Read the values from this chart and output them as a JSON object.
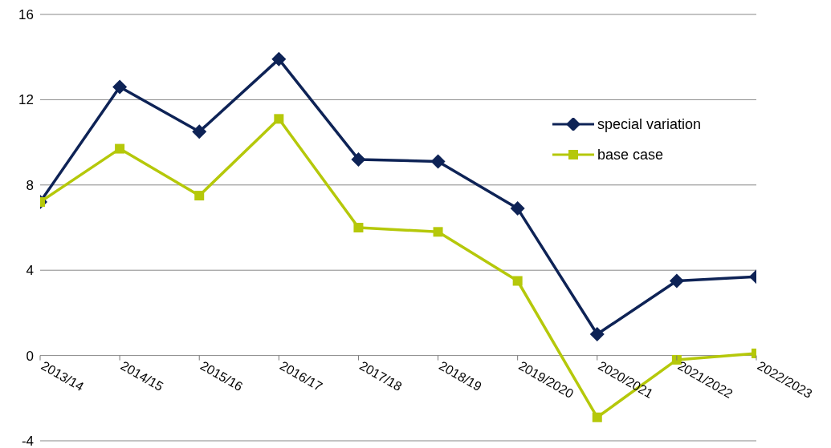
{
  "chart_data": {
    "type": "line",
    "categories": [
      "2013/14",
      "2014/15",
      "2015/16",
      "2016/17",
      "2017/18",
      "2018/19",
      "2019/2020",
      "2020/2021",
      "2021/2022",
      "2022/2023"
    ],
    "series": [
      {
        "name": "special variation",
        "color": "#0e2356",
        "marker": "diamond",
        "values": [
          7.2,
          12.6,
          10.5,
          13.9,
          9.2,
          9.1,
          6.9,
          1.0,
          3.5,
          3.7
        ]
      },
      {
        "name": "base case",
        "color": "#b5c80a",
        "marker": "square",
        "values": [
          7.2,
          9.7,
          7.5,
          11.1,
          6.0,
          5.8,
          3.5,
          -2.9,
          -0.2,
          0.1
        ]
      }
    ],
    "ylim": [
      -4,
      16
    ],
    "yticks": [
      -4,
      0,
      4,
      8,
      12,
      16
    ],
    "grid": "y",
    "legend": "right",
    "line_style": "solid"
  }
}
